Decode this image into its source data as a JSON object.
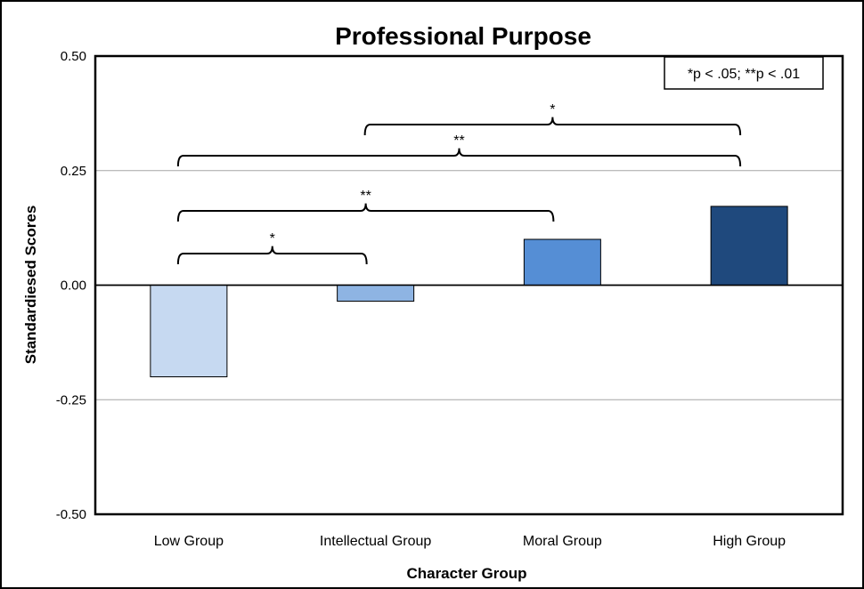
{
  "chart_data": {
    "type": "bar",
    "title": "Professional Purpose",
    "xlabel": "Character Group",
    "ylabel": "Standardiesed Scores",
    "categories": [
      "Low Group",
      "Intellectual Group",
      "Moral Group",
      "High Group"
    ],
    "values": [
      -0.2,
      -0.035,
      0.1,
      0.172
    ],
    "colors": [
      "#c6d9f1",
      "#8eb4e3",
      "#558ed5",
      "#1f497d"
    ],
    "ylim": [
      -0.5,
      0.5
    ],
    "yticks": [
      0.5,
      0.25,
      0.0,
      -0.25,
      -0.5
    ],
    "ytick_labels": [
      "0.50",
      "0.25",
      "0.00",
      "-0.25",
      "-0.50"
    ],
    "grid": true,
    "legend_note": "*p < .05; **p < .01",
    "significance": [
      {
        "from": 0,
        "to": 1,
        "label": "*"
      },
      {
        "from": 0,
        "to": 2,
        "label": "**"
      },
      {
        "from": 0,
        "to": 3,
        "label": "**"
      },
      {
        "from": 1,
        "to": 3,
        "label": "*"
      }
    ]
  }
}
